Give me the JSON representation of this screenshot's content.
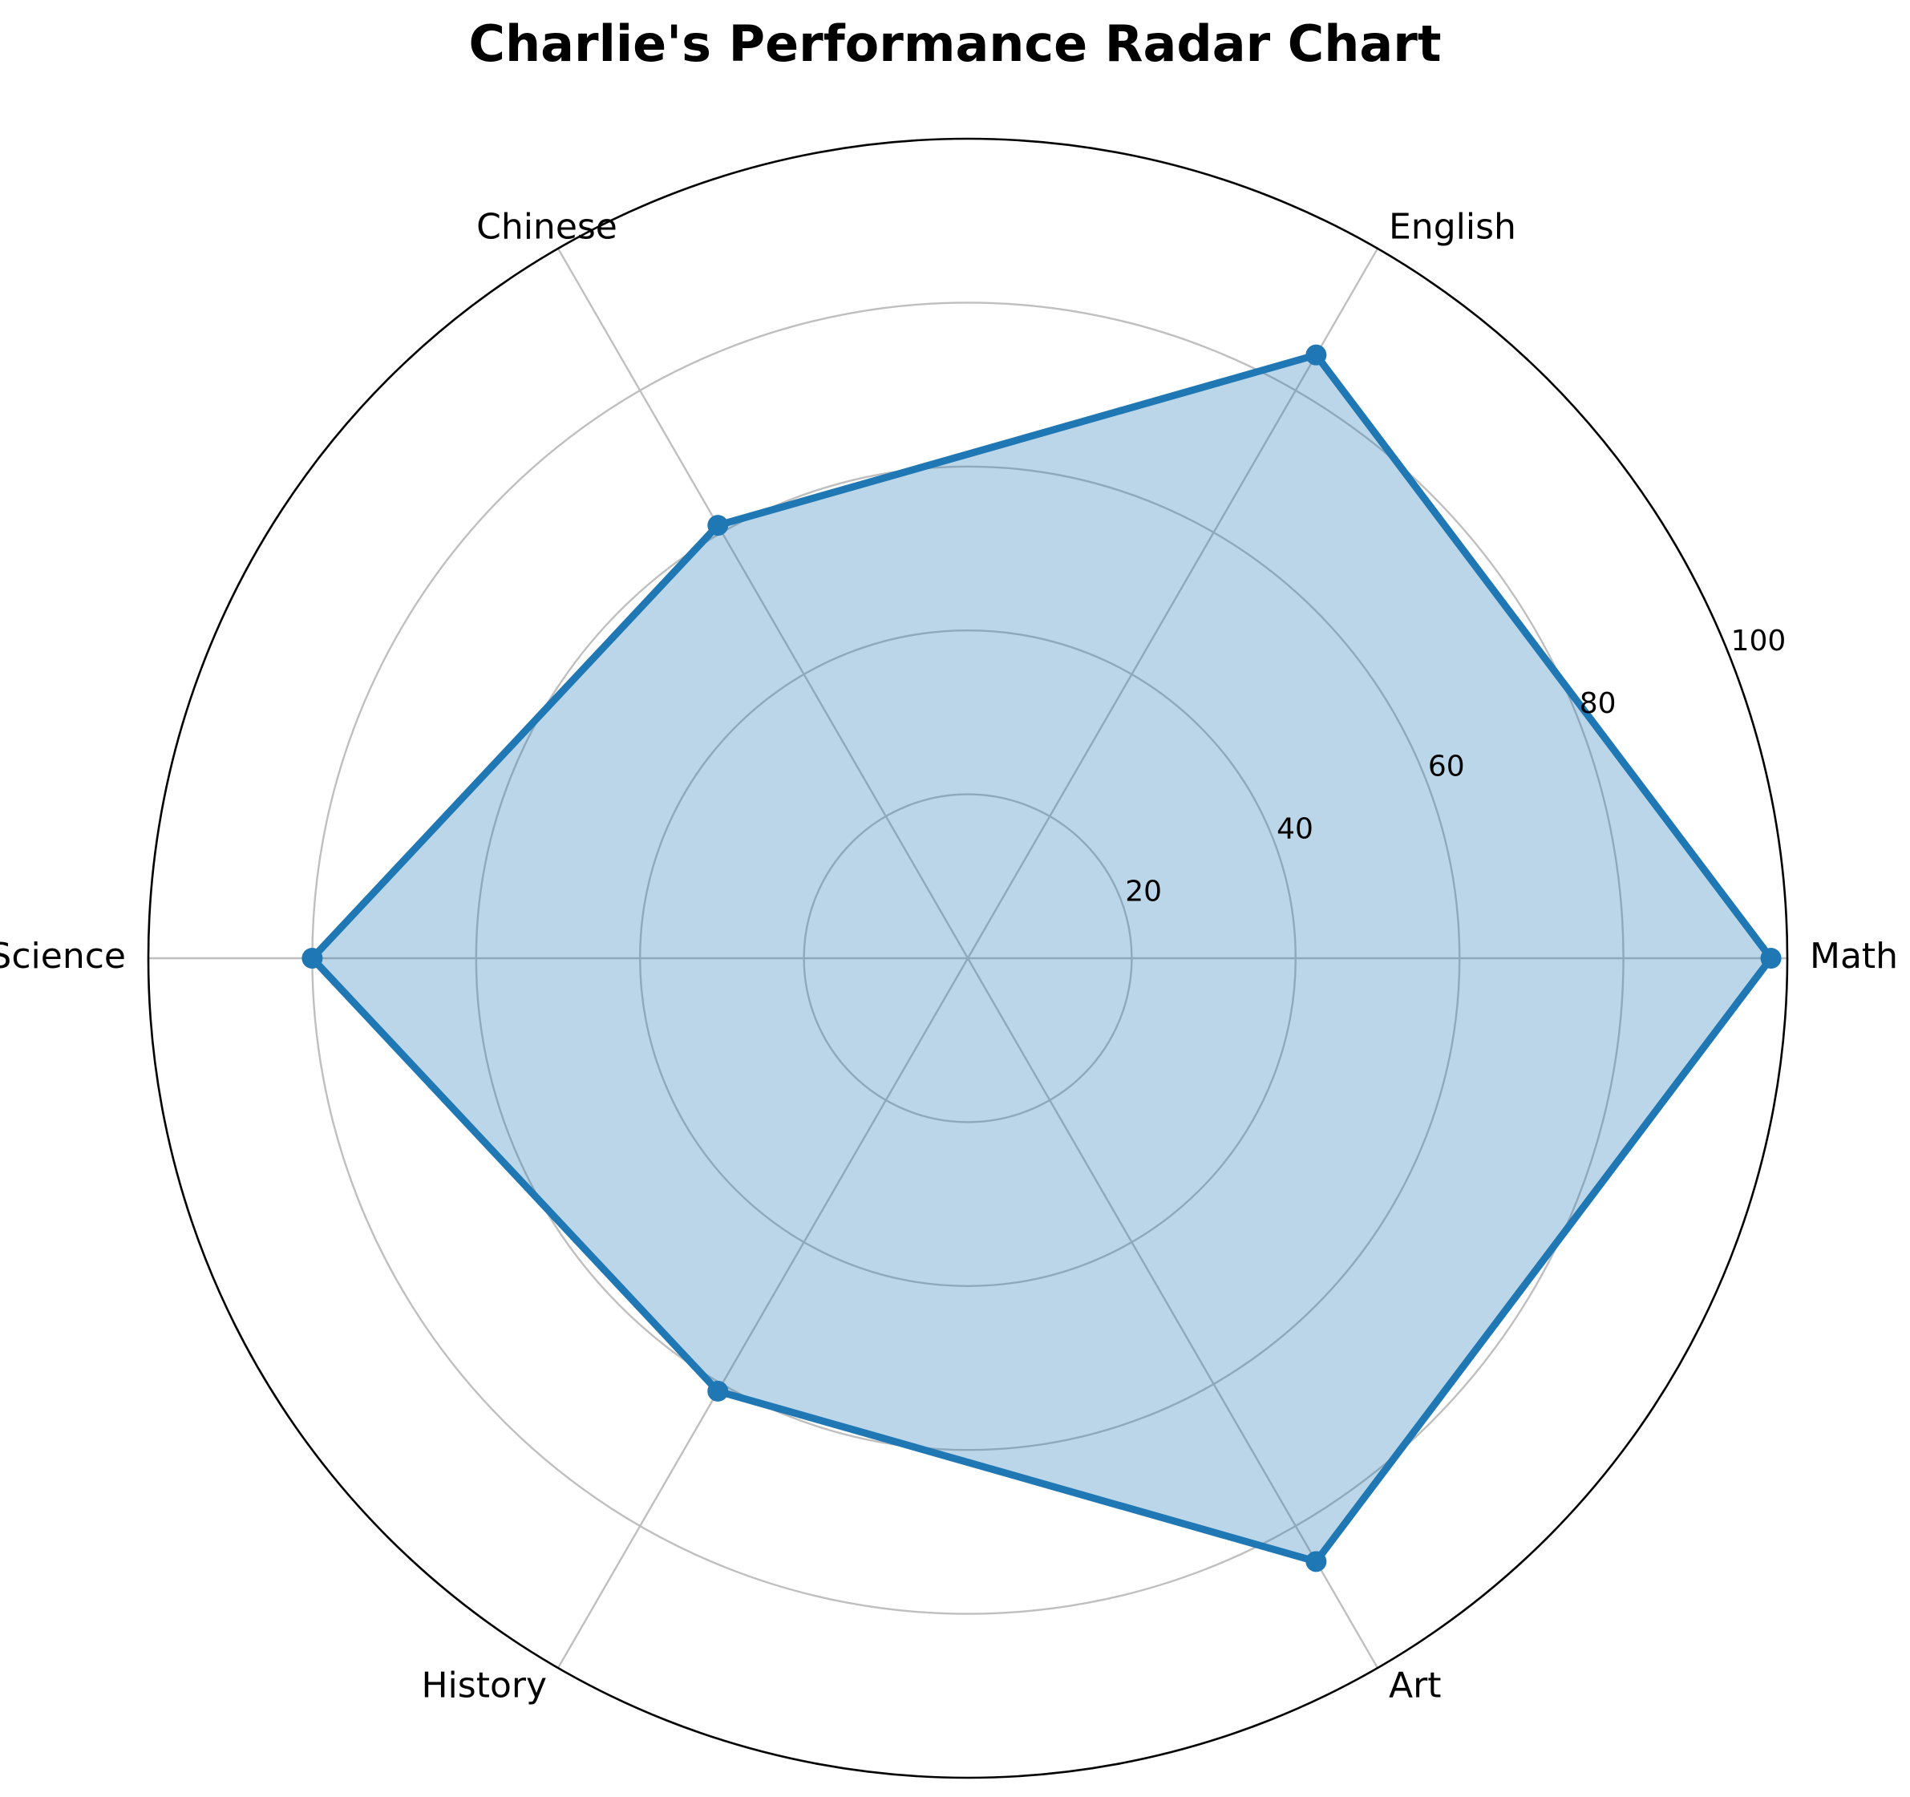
{
  "chart_data": {
    "type": "radar",
    "title": "Charlie's Performance Radar Chart",
    "categories": [
      "Math",
      "English",
      "Chinese",
      "Science",
      "History",
      "Art"
    ],
    "series": [
      {
        "values": [
          98,
          85,
          61,
          80,
          61,
          85
        ]
      }
    ],
    "r_ticks": [
      20,
      40,
      60,
      80,
      100
    ],
    "rlim": [
      0,
      100
    ],
    "grid": true,
    "colors": {
      "line": "#1f77b4",
      "fill": "#1f77b4",
      "grid": "#bfbfbf",
      "frame": "#000000"
    }
  }
}
